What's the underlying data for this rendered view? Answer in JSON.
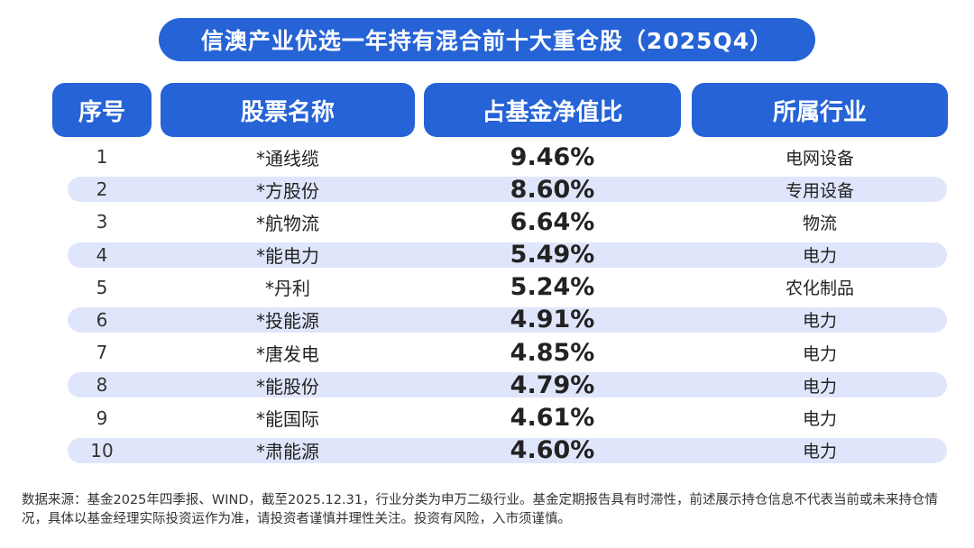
{
  "title": "信澳产业优选一年持有混合前十大重仓股（2025Q4）",
  "headers": {
    "seq": "序号",
    "name": "股票名称",
    "ratio": "占基金净值比",
    "industry": "所属行业"
  },
  "rows": [
    {
      "seq": "1",
      "name": "*通线缆",
      "ratio": "9.46%",
      "industry": "电网设备"
    },
    {
      "seq": "2",
      "name": "*方股份",
      "ratio": "8.60%",
      "industry": "专用设备"
    },
    {
      "seq": "3",
      "name": "*航物流",
      "ratio": "6.64%",
      "industry": "物流"
    },
    {
      "seq": "4",
      "name": "*能电力",
      "ratio": "5.49%",
      "industry": "电力"
    },
    {
      "seq": "5",
      "name": "*丹利",
      "ratio": "5.24%",
      "industry": "农化制品"
    },
    {
      "seq": "6",
      "name": "*投能源",
      "ratio": "4.91%",
      "industry": "电力"
    },
    {
      "seq": "7",
      "name": "*唐发电",
      "ratio": "4.85%",
      "industry": "电力"
    },
    {
      "seq": "8",
      "name": "*能股份",
      "ratio": "4.79%",
      "industry": "电力"
    },
    {
      "seq": "9",
      "name": "*能国际",
      "ratio": "4.61%",
      "industry": "电力"
    },
    {
      "seq": "10",
      "name": "*肃能源",
      "ratio": "4.60%",
      "industry": "电力"
    }
  ],
  "footnote": "数据来源：基金2025年四季报、WIND，截至2025.12.31，行业分类为申万二级行业。基金定期报告具有时滞性，前述展示持仓信息不代表当前或未来持仓情况，具体以基金经理实际投资运作为准，请投资者谨慎并理性关注。投资有风险，入市须谨慎。",
  "colors": {
    "accent": "#2563d6",
    "row_shade": "#dfe6fb"
  }
}
